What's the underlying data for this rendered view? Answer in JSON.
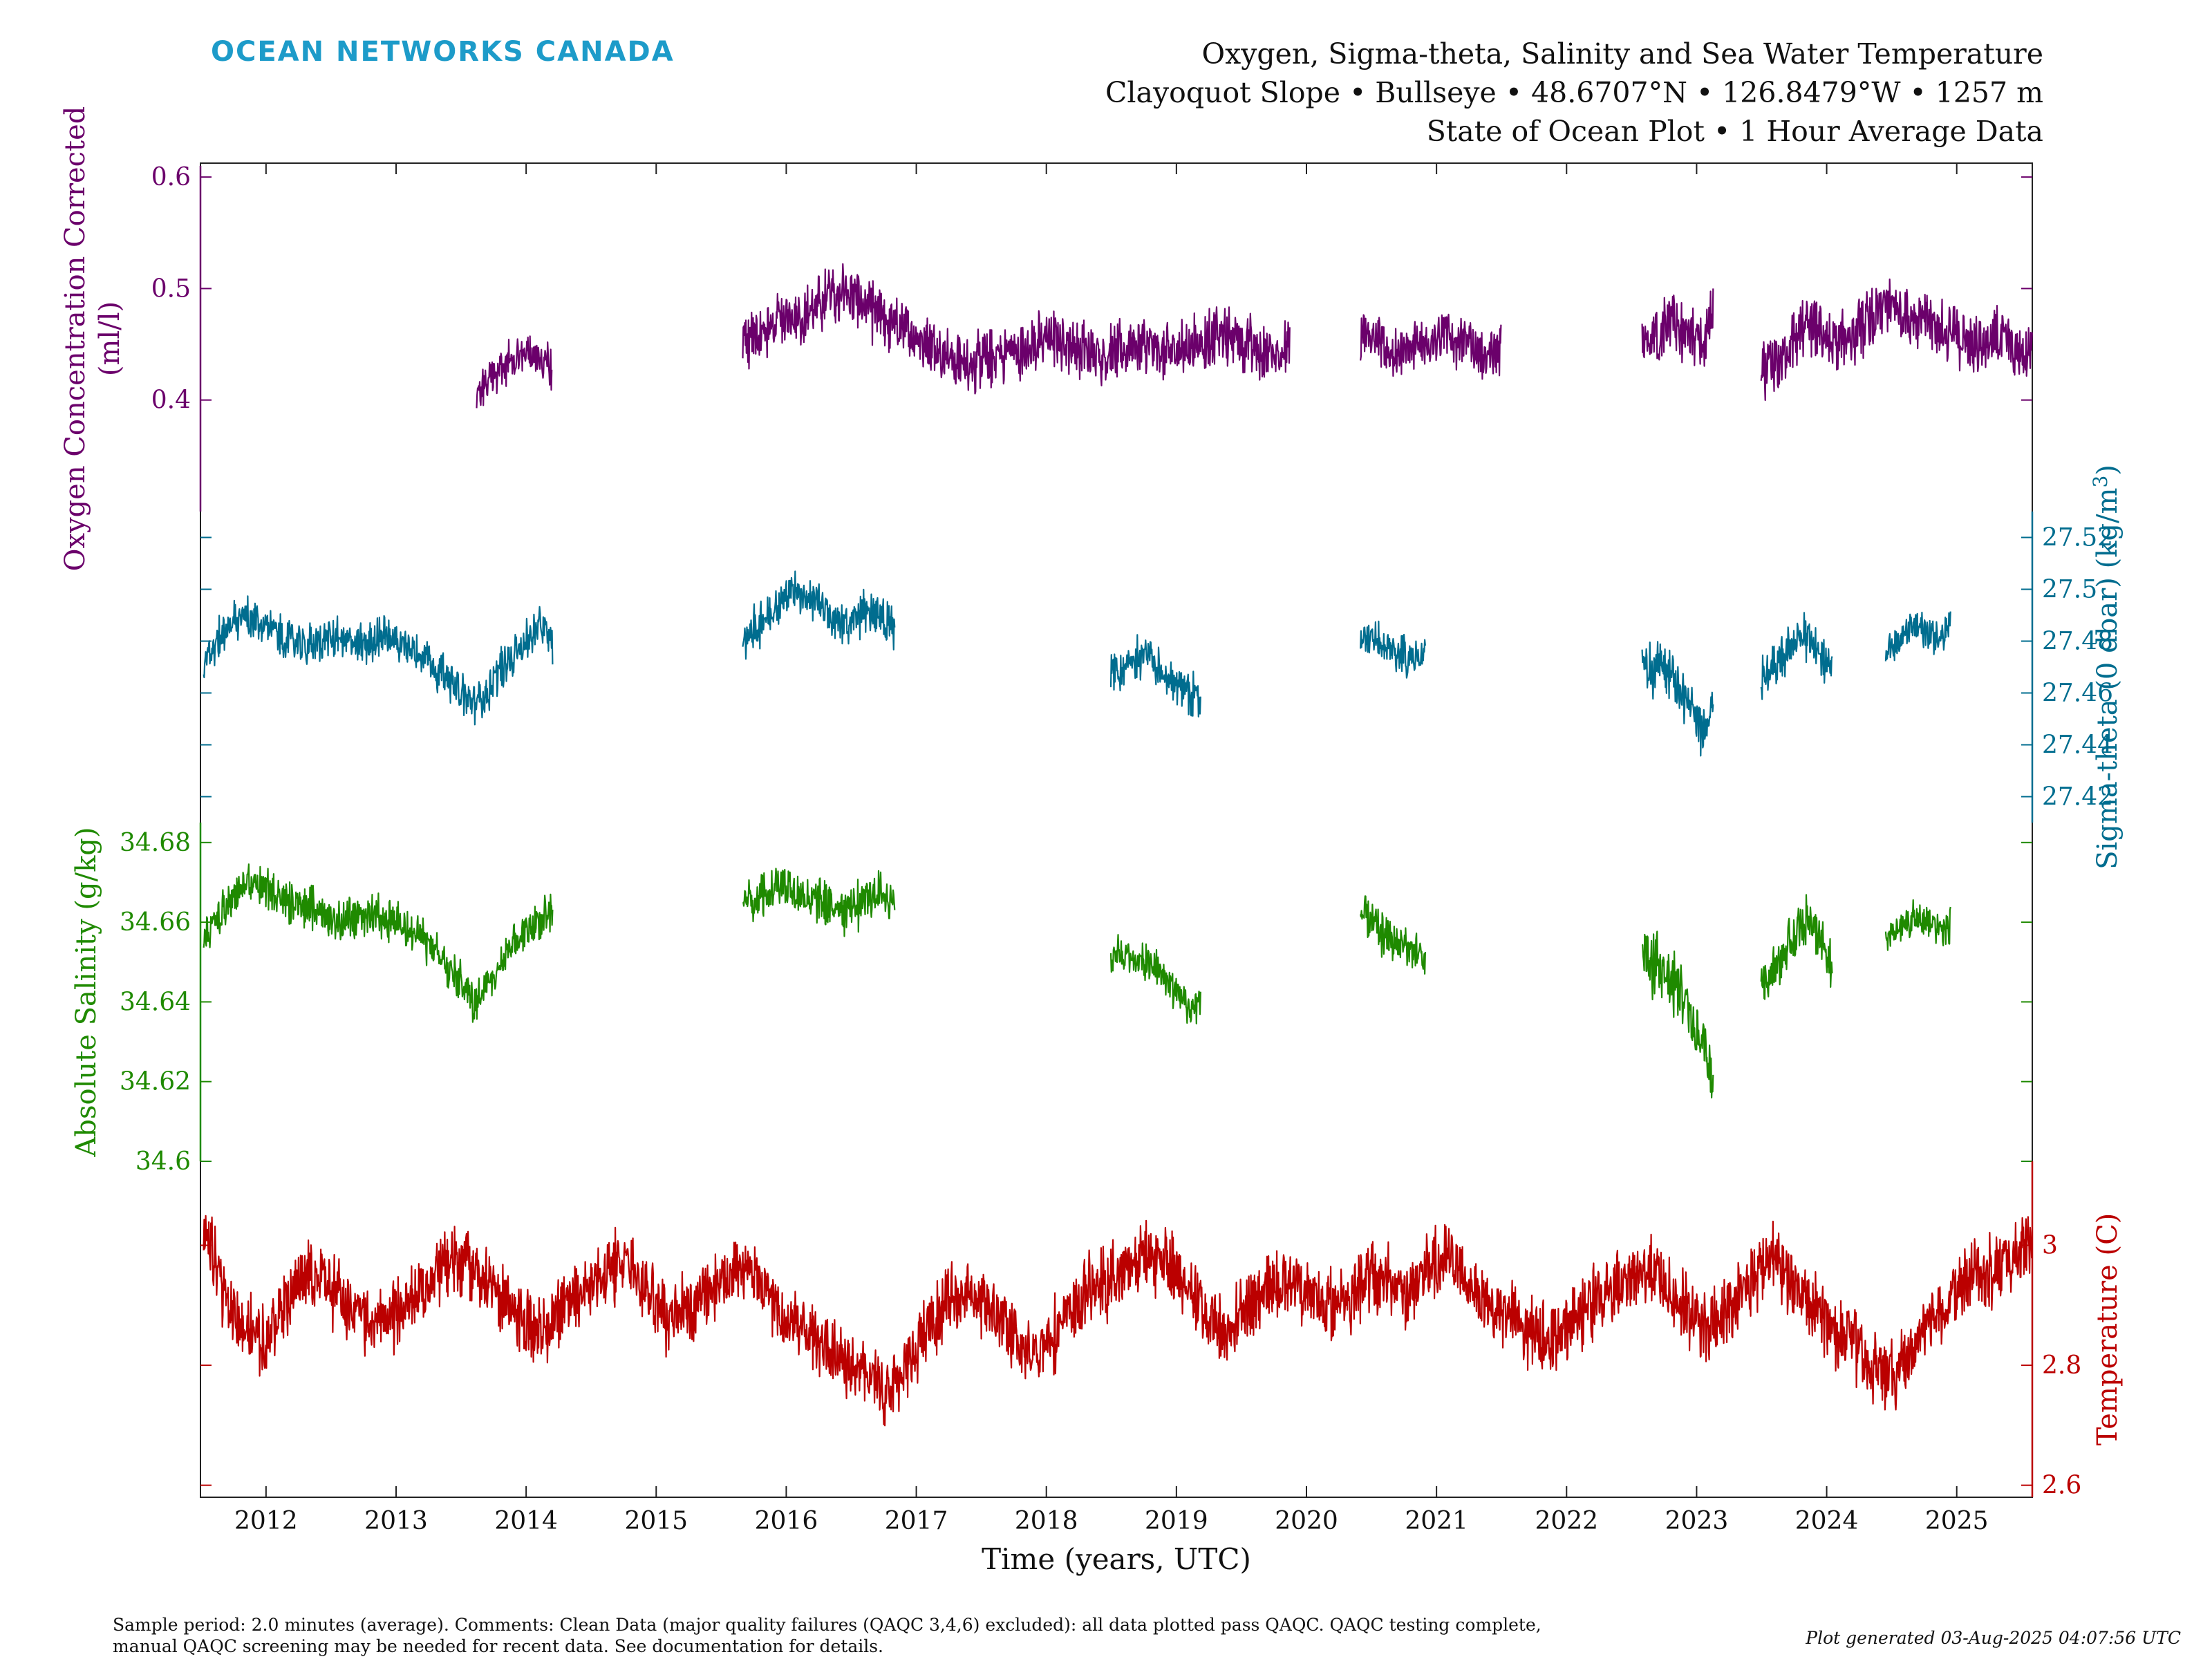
{
  "header": {
    "brand": "OCEAN NETWORKS CANADA",
    "title_lines": [
      "Oxygen, Sigma-theta, Salinity and Sea Water Temperature",
      "Clayoquot Slope • Bullseye • 48.6707°N • 126.8479°W • 1257 m",
      "State of Ocean Plot • 1 Hour Average Data"
    ]
  },
  "footer": {
    "comment_lines": [
      "Sample period: 2.0 minutes (average). Comments: Clean Data (major quality failures (QAQC 3,4,6) excluded): all data plotted pass QAQC. QAQC testing complete,",
      "manual QAQC screening may be needed for recent data. See documentation for details."
    ],
    "generated": "Plot generated 03-Aug-2025 04:07:56 UTC"
  },
  "colors": {
    "oxygen": "#6b006b",
    "sigma": "#006d8f",
    "salinity": "#1f8a00",
    "temperature": "#bb0000",
    "axis": "#222222"
  },
  "chart_data": {
    "type": "line",
    "xlabel": "Time (years, UTC)",
    "x_range": [
      "2011-07-01",
      "2025-08-01"
    ],
    "x_ticks": [
      "2012",
      "2013",
      "2014",
      "2015",
      "2016",
      "2017",
      "2018",
      "2019",
      "2020",
      "2021",
      "2022",
      "2023",
      "2024",
      "2025"
    ],
    "grid": false,
    "panels": [
      {
        "key": "oxygen",
        "label_lines": [
          "Oxygen Concentration Corrected",
          "(ml/l)"
        ],
        "axis_side": "left",
        "ylim": [
          0.3,
          0.61
        ],
        "ticks": [
          "0.4",
          "0.5",
          "0.6"
        ],
        "segments": [
          {
            "start": "2013-08-15",
            "end": "2014-03-15",
            "values": [
              0.4,
              0.415,
              0.425,
              0.43,
              0.435,
              0.43,
              0.44,
              0.445,
              0.435,
              0.44,
              0.43
            ],
            "noise": 0.03
          },
          {
            "start": "2015-09-01",
            "end": "2019-11-15",
            "values": [
              0.45,
              0.46,
              0.47,
              0.475,
              0.48,
              0.5,
              0.495,
              0.48,
              0.47,
              0.46,
              0.455,
              0.44,
              0.43,
              0.435,
              0.44,
              0.445,
              0.45,
              0.455,
              0.45,
              0.445,
              0.44,
              0.445,
              0.45,
              0.44,
              0.445,
              0.45,
              0.46,
              0.455,
              0.45,
              0.44,
              0.445
            ],
            "noise": 0.04
          },
          {
            "start": "2020-06-01",
            "end": "2021-07-01",
            "values": [
              0.46,
              0.455,
              0.45,
              0.44,
              0.445,
              0.45,
              0.455,
              0.46,
              0.455,
              0.45,
              0.44,
              0.435,
              0.45
            ],
            "noise": 0.035
          },
          {
            "start": "2022-08-01",
            "end": "2023-02-15",
            "values": [
              0.45,
              0.46,
              0.465,
              0.47,
              0.46,
              0.455,
              0.45,
              0.48
            ],
            "noise": 0.04
          },
          {
            "start": "2023-07-01",
            "end": "2025-08-01",
            "values": [
              0.42,
              0.43,
              0.44,
              0.46,
              0.47,
              0.46,
              0.45,
              0.455,
              0.46,
              0.47,
              0.48,
              0.485,
              0.48,
              0.475,
              0.47,
              0.465,
              0.46,
              0.455,
              0.45,
              0.455,
              0.46,
              0.45,
              0.44,
              0.45
            ],
            "noise": 0.04
          }
        ]
      },
      {
        "key": "sigma",
        "label": "Sigma-theta (0 dbar) (kg/m",
        "label_sup": "3",
        "label_end": ")",
        "axis_side": "right",
        "ylim": [
          27.41,
          27.53
        ],
        "ticks": [
          "27.42",
          "27.44",
          "27.46",
          "27.48",
          "27.5",
          "27.52"
        ],
        "segments": [
          {
            "start": "2011-07-10",
            "end": "2014-03-15",
            "values": [
              27.47,
              27.48,
              27.485,
              27.49,
              27.488,
              27.485,
              27.482,
              27.48,
              27.478,
              27.48,
              27.482,
              27.48,
              27.478,
              27.48,
              27.482,
              27.48,
              27.478,
              27.475,
              27.47,
              27.465,
              27.46,
              27.455,
              27.46,
              27.47,
              27.475,
              27.48,
              27.485,
              27.48
            ],
            "noise": 0.012
          },
          {
            "start": "2015-09-01",
            "end": "2016-11-01",
            "values": [
              27.48,
              27.485,
              27.49,
              27.495,
              27.5,
              27.498,
              27.495,
              27.49,
              27.485,
              27.49,
              27.492,
              27.49,
              27.485
            ],
            "noise": 0.013
          },
          {
            "start": "2018-07-01",
            "end": "2019-03-10",
            "values": [
              27.47,
              27.468,
              27.472,
              27.475,
              27.47,
              27.466,
              27.462,
              27.46,
              27.458
            ],
            "noise": 0.012
          },
          {
            "start": "2020-06-01",
            "end": "2020-12-01",
            "values": [
              27.48,
              27.482,
              27.478,
              27.476,
              27.475,
              27.472,
              27.478
            ],
            "noise": 0.012
          },
          {
            "start": "2022-08-01",
            "end": "2023-02-15",
            "values": [
              27.47,
              27.468,
              27.472,
              27.466,
              27.46,
              27.452,
              27.445,
              27.455
            ],
            "noise": 0.015
          },
          {
            "start": "2023-07-01",
            "end": "2024-01-15",
            "values": [
              27.465,
              27.47,
              27.475,
              27.48,
              27.482,
              27.475,
              27.47
            ],
            "noise": 0.013
          },
          {
            "start": "2024-06-15",
            "end": "2024-12-15",
            "values": [
              27.475,
              27.48,
              27.484,
              27.486,
              27.484,
              27.482,
              27.486
            ],
            "noise": 0.011
          }
        ]
      },
      {
        "key": "salinity",
        "label": "Absolute Salinity (g/kg)",
        "axis_side": "left",
        "ylim": [
          34.6,
          34.685
        ],
        "ticks": [
          "34.6",
          "34.62",
          "34.64",
          "34.66",
          "34.68"
        ],
        "segments": [
          {
            "start": "2011-07-10",
            "end": "2014-03-15",
            "values": [
              34.655,
              34.66,
              34.665,
              34.668,
              34.67,
              34.668,
              34.666,
              34.665,
              34.664,
              34.663,
              34.662,
              34.661,
              34.66,
              34.662,
              34.661,
              34.66,
              34.658,
              34.656,
              34.652,
              34.648,
              34.644,
              34.64,
              34.645,
              34.65,
              34.655,
              34.658,
              34.66,
              34.662
            ],
            "noise": 0.008
          },
          {
            "start": "2015-09-01",
            "end": "2016-11-01",
            "values": [
              34.664,
              34.666,
              34.668,
              34.67,
              34.668,
              34.666,
              34.665,
              34.664,
              34.663,
              34.664,
              34.666,
              34.667,
              34.666
            ],
            "noise": 0.009
          },
          {
            "start": "2018-07-01",
            "end": "2019-03-10",
            "values": [
              34.652,
              34.652,
              34.65,
              34.65,
              34.648,
              34.645,
              34.642,
              34.638,
              34.64
            ],
            "noise": 0.008
          },
          {
            "start": "2020-06-01",
            "end": "2020-12-01",
            "values": [
              34.662,
              34.66,
              34.657,
              34.655,
              34.654,
              34.652,
              34.65
            ],
            "noise": 0.008
          },
          {
            "start": "2022-08-01",
            "end": "2023-02-15",
            "values": [
              34.652,
              34.65,
              34.648,
              34.645,
              34.64,
              34.635,
              34.628,
              34.622
            ],
            "noise": 0.012
          },
          {
            "start": "2023-07-01",
            "end": "2024-01-15",
            "values": [
              34.645,
              34.648,
              34.652,
              34.658,
              34.662,
              34.655,
              34.648
            ],
            "noise": 0.009
          },
          {
            "start": "2024-06-15",
            "end": "2024-12-15",
            "values": [
              34.656,
              34.658,
              34.66,
              34.661,
              34.66,
              34.658,
              34.66
            ],
            "noise": 0.007
          }
        ]
      },
      {
        "key": "temperature",
        "label": "Temperature (C)",
        "axis_side": "right",
        "ylim": [
          2.58,
          3.14
        ],
        "ticks": [
          "2.6",
          "2.8",
          "3"
        ],
        "segments": [
          {
            "start": "2011-07-10",
            "end": "2025-08-01",
            "values": [
              3.02,
              2.92,
              2.86,
              2.84,
              2.9,
              2.96,
              2.94,
              2.9,
              2.88,
              2.87,
              2.9,
              2.93,
              2.96,
              2.98,
              2.94,
              2.9,
              2.88,
              2.86,
              2.9,
              2.92,
              2.95,
              2.98,
              2.92,
              2.88,
              2.9,
              2.92,
              2.94,
              2.96,
              2.92,
              2.88,
              2.86,
              2.84,
              2.8,
              2.78,
              2.76,
              2.8,
              2.86,
              2.9,
              2.92,
              2.9,
              2.86,
              2.82,
              2.84,
              2.88,
              2.92,
              2.94,
              2.96,
              2.98,
              2.97,
              2.93,
              2.88,
              2.86,
              2.9,
              2.93,
              2.95,
              2.92,
              2.9,
              2.92,
              2.95,
              2.94,
              2.92,
              2.96,
              2.98,
              2.94,
              2.9,
              2.88,
              2.86,
              2.84,
              2.88,
              2.9,
              2.92,
              2.94,
              2.96,
              2.92,
              2.88,
              2.86,
              2.9,
              2.94,
              2.98,
              2.94,
              2.9,
              2.86,
              2.84,
              2.8,
              2.78,
              2.82,
              2.88,
              2.92,
              2.95,
              2.96,
              2.98,
              3.0
            ],
            "noise": 0.09
          }
        ]
      }
    ]
  }
}
